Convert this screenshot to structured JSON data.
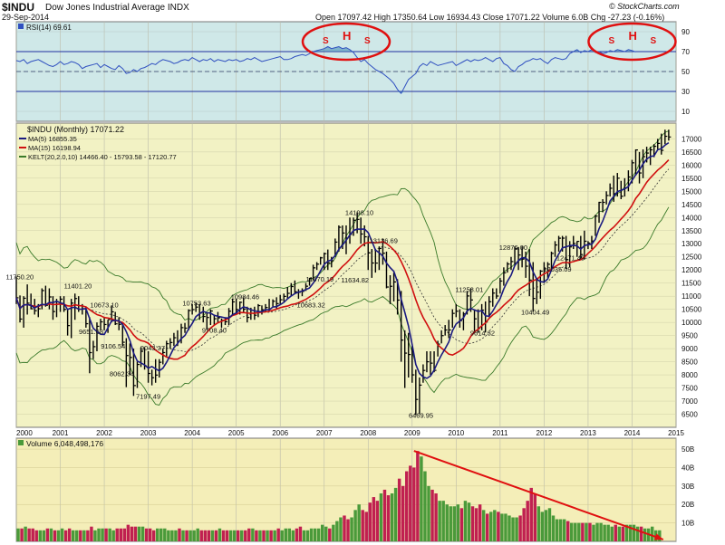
{
  "header": {
    "symbol": "$INDU",
    "name": "Dow Jones Industrial Average INDX",
    "date": "29-Sep-2014",
    "quote": "Open 17097.42  High 17350.64  Low 16934.43  Close 17071.22  Volume 6.0B  Chg -27.23 (-0.16%)",
    "brand": "© StockCharts.com"
  },
  "colors": {
    "rsi_bg": "#cfe8e8",
    "price_bg": "#f2f2c4",
    "volume_bg": "#f4eeb8",
    "rsi_line": "#3050c0",
    "ma5": "#1a1a80",
    "ma15": "#d01010",
    "kelt": "#3a7a2a",
    "up_volume": "#4a9a3a",
    "down_volume": "#c02050",
    "annotation": "#e01010"
  },
  "chart_data": [
    {
      "type": "line",
      "title": "RSI(14) 69.61",
      "ylim": [
        0,
        100
      ],
      "yticks": [
        10,
        30,
        50,
        70,
        90
      ],
      "reference_lines": [
        30,
        50,
        70
      ],
      "x_start": 2000.0,
      "x_step": 0.08333,
      "values": [
        61,
        60,
        62,
        58,
        60,
        61,
        62,
        60,
        58,
        56,
        55,
        57,
        60,
        57,
        58,
        60,
        59,
        57,
        53,
        55,
        56,
        57,
        58,
        54,
        57,
        55,
        53,
        52,
        56,
        53,
        48,
        49,
        52,
        50,
        53,
        54,
        56,
        58,
        57,
        60,
        62,
        61,
        60,
        58,
        59,
        61,
        62,
        61,
        64,
        62,
        60,
        62,
        61,
        63,
        60,
        62,
        61,
        60,
        62,
        61,
        62,
        60,
        61,
        63,
        62,
        64,
        62,
        60,
        61,
        62,
        63,
        64,
        65,
        62,
        62,
        63,
        65,
        66,
        67,
        66,
        68,
        70,
        71,
        72,
        73,
        75,
        73,
        74,
        75,
        73,
        74,
        72,
        69,
        64,
        60,
        62,
        58,
        55,
        52,
        50,
        48,
        45,
        42,
        38,
        32,
        28,
        35,
        42,
        45,
        48,
        55,
        58,
        56,
        60,
        58,
        56,
        57,
        58,
        59,
        60,
        56,
        58,
        60,
        62,
        60,
        62,
        61,
        62,
        64,
        62,
        60,
        63,
        64,
        58,
        56,
        52,
        50,
        55,
        57,
        60,
        61,
        63,
        62,
        63,
        60,
        58,
        62,
        64,
        63,
        62,
        63,
        68,
        70,
        72,
        69,
        71,
        70,
        72,
        69,
        70,
        68,
        69,
        71,
        70,
        72,
        71,
        70,
        72,
        71,
        69.6
      ],
      "annotations": [
        {
          "x": 2007.5,
          "label": "H",
          "shoulders": "S"
        },
        {
          "x": 2014.0,
          "label": "H",
          "shoulders": "S"
        }
      ]
    },
    {
      "type": "line",
      "title": "$INDU (Monthly) 17071.22",
      "legend": [
        {
          "name": "MA(5) 16855.35"
        },
        {
          "name": "MA(15) 16198.94"
        },
        {
          "name": "KELT(20,2.0,10) 14466.40 - 15793.58 - 17120.77"
        }
      ],
      "ylim": [
        6000,
        17600
      ],
      "yticks": [
        6500,
        7000,
        7500,
        8000,
        8500,
        9000,
        9500,
        10000,
        10500,
        11000,
        11500,
        12000,
        12500,
        13000,
        13500,
        14000,
        14500,
        15000,
        15500,
        16000,
        16500,
        17000
      ],
      "xlim": [
        2000.0,
        2015.0
      ],
      "xticks": [
        "2000",
        "2001",
        "2002",
        "2003",
        "2004",
        "2005",
        "2006",
        "2007",
        "2008",
        "2009",
        "2010",
        "2011",
        "2012",
        "2013",
        "2014",
        "2015"
      ],
      "x_start": 2000.0,
      "x_step": 0.08333,
      "close": [
        10940,
        10128,
        10922,
        10734,
        10522,
        10448,
        10522,
        11215,
        10651,
        10971,
        10415,
        10788,
        10887,
        10495,
        9879,
        10735,
        10912,
        10502,
        10523,
        9950,
        8848,
        9075,
        9852,
        10022,
        9920,
        10106,
        10404,
        9946,
        9925,
        9243,
        8737,
        8664,
        7592,
        8397,
        8896,
        8342,
        8054,
        7891,
        7992,
        8480,
        8850,
        9188,
        9233,
        9416,
        9275,
        9801,
        9782,
        10454,
        10488,
        10584,
        10358,
        10226,
        10188,
        10435,
        10140,
        10174,
        10080,
        10027,
        10428,
        10783,
        10490,
        10766,
        10504,
        10192,
        10467,
        10275,
        10641,
        10482,
        10569,
        10440,
        10806,
        10718,
        10864,
        10993,
        11109,
        11367,
        11168,
        11150,
        11186,
        11381,
        11679,
        12081,
        12221,
        12463,
        12622,
        12269,
        12354,
        13063,
        13628,
        13409,
        13212,
        13358,
        13896,
        13930,
        13371,
        13264,
        12650,
        12266,
        12263,
        12820,
        12638,
        11350,
        11378,
        11544,
        10851,
        9325,
        8829,
        8776,
        8000,
        7062,
        7609,
        8168,
        8500,
        8447,
        8171,
        9172,
        9496,
        9712,
        9713,
        10345,
        10428,
        10067,
        10325,
        11009,
        10857,
        10137,
        9774,
        10466,
        10015,
        10788,
        11118,
        11006,
        11578,
        11892,
        12226,
        12320,
        12811,
        12570,
        12414,
        12143,
        11614,
        10914,
        11153,
        11955,
        12046,
        12217,
        12632,
        12952,
        13212,
        13214,
        12393,
        12880,
        13009,
        13091,
        12588,
        13096,
        13025,
        13104,
        14054,
        14578,
        14579,
        14840,
        15116,
        14910,
        15500,
        14810,
        15130,
        15546,
        16086,
        16577,
        15699,
        16322,
        16458,
        16581,
        16717,
        16827,
        16563,
        17098,
        17071
      ],
      "high": [
        11751,
        11029,
        11000,
        11450,
        11100,
        10900,
        10700,
        11300,
        11400,
        11300,
        11000,
        10900,
        11000,
        11000,
        10500,
        10900,
        11100,
        11000,
        10700,
        10600,
        10200,
        9300,
        10000,
        10140,
        10200,
        10100,
        10650,
        10400,
        10200,
        10000,
        9400,
        9200,
        9000,
        8500,
        9050,
        9050,
        8900,
        8200,
        8600,
        8600,
        9000,
        9300,
        9400,
        9600,
        9700,
        9950,
        9980,
        10500,
        10700,
        10760,
        10700,
        10600,
        10350,
        10500,
        10300,
        10400,
        10150,
        10200,
        10550,
        10900,
        10900,
        10800,
        10950,
        10600,
        10560,
        10600,
        10700,
        10650,
        10700,
        10900,
        10880,
        10960,
        11050,
        11100,
        11350,
        11500,
        11600,
        11270,
        11300,
        11500,
        11700,
        12200,
        12300,
        12500,
        12660,
        12780,
        12500,
        13200,
        13700,
        13700,
        13700,
        14000,
        14000,
        14198,
        14000,
        13700,
        13300,
        12800,
        12800,
        12900,
        13200,
        12700,
        11800,
        11900,
        11650,
        11200,
        9700,
        9600,
        9100,
        8200,
        7900,
        8400,
        8900,
        8900,
        8900,
        9300,
        9700,
        9900,
        10100,
        10500,
        10700,
        10500,
        10400,
        11200,
        11300,
        10500,
        10500,
        10700,
        10800,
        11000,
        11300,
        11300,
        11700,
        12100,
        12300,
        12500,
        12900,
        12876,
        12900,
        12700,
        12800,
        12300,
        11700,
        12000,
        12300,
        12300,
        12700,
        13100,
        13300,
        13300,
        13300,
        13100,
        13300,
        13100,
        13300,
        13500,
        13100,
        13300,
        14100,
        14600,
        14700,
        15000,
        15300,
        15600,
        15700,
        15400,
        15500,
        15800,
        16200,
        16600,
        16500,
        16600,
        16700,
        16700,
        16800,
        17000,
        17200,
        17350,
        17350
      ],
      "low": [
        10700,
        10000,
        9800,
        10300,
        10500,
        10300,
        10200,
        10500,
        10600,
        10500,
        10100,
        10200,
        10400,
        10400,
        9500,
        9400,
        10100,
        10400,
        10300,
        9800,
        8062,
        8600,
        8900,
        9700,
        9700,
        9600,
        10000,
        9900,
        9700,
        9100,
        7532,
        8000,
        7197,
        7500,
        8300,
        8200,
        7700,
        7600,
        7700,
        7900,
        8400,
        8700,
        9000,
        9100,
        9100,
        9200,
        9600,
        9700,
        10300,
        10400,
        10100,
        10000,
        9708,
        9900,
        9900,
        10000,
        9800,
        9900,
        9900,
        10300,
        10300,
        10300,
        10400,
        10000,
        10100,
        10100,
        10200,
        10300,
        10400,
        10400,
        10600,
        10500,
        10683,
        10800,
        10900,
        11000,
        11100,
        10900,
        11000,
        11200,
        11400,
        11600,
        12000,
        12200,
        12000,
        12000,
        12100,
        12500,
        12700,
        12800,
        12600,
        13000,
        13300,
        13400,
        13000,
        12900,
        12000,
        11700,
        11900,
        12000,
        12200,
        11300,
        10700,
        10800,
        10300,
        8500,
        7500,
        7900,
        7700,
        6470,
        6500,
        7700,
        8100,
        8000,
        8100,
        8700,
        9200,
        9500,
        9400,
        9800,
        10200,
        9800,
        9700,
        10300,
        10400,
        9600,
        9600,
        9700,
        9614,
        10200,
        10600,
        10900,
        11100,
        11400,
        11900,
        12000,
        12200,
        12000,
        12100,
        11700,
        11000,
        10404,
        10700,
        10900,
        11500,
        11700,
        12000,
        12500,
        12700,
        12700,
        12035,
        12100,
        12800,
        12500,
        12400,
        12400,
        12800,
        12800,
        13300,
        13800,
        14200,
        14500,
        14800,
        14600,
        14800,
        14700,
        14800,
        15000,
        15300,
        15600,
        15300,
        15500,
        16100,
        16000,
        16300,
        16600,
        16400,
        16800,
        16934
      ],
      "labels": [
        {
          "x": 2000.08,
          "value": 11750.2
        },
        {
          "x": 2001.4,
          "value": 11401.2
        },
        {
          "x": 2001.7,
          "value": 9651.68
        },
        {
          "x": 2002.0,
          "value": 10673.1
        },
        {
          "x": 2002.2,
          "value": 9106.54
        },
        {
          "x": 2002.4,
          "value": 8062.34
        },
        {
          "x": 2003.0,
          "value": 7197.49
        },
        {
          "x": 2003.1,
          "value": 9043.37
        },
        {
          "x": 2004.1,
          "value": 10753.63
        },
        {
          "x": 2004.5,
          "value": 9708.4
        },
        {
          "x": 2005.2,
          "value": 10984.46
        },
        {
          "x": 2006.7,
          "value": 10683.32
        },
        {
          "x": 2006.9,
          "value": 11670.19
        },
        {
          "x": 2007.8,
          "value": 14198.1
        },
        {
          "x": 2007.7,
          "value": 11634.82
        },
        {
          "x": 2008.35,
          "value": 13136.69
        },
        {
          "x": 2009.2,
          "value": 6469.95
        },
        {
          "x": 2010.3,
          "value": 11258.01
        },
        {
          "x": 2010.6,
          "value": 9614.32
        },
        {
          "x": 2011.3,
          "value": 12876.0
        },
        {
          "x": 2011.8,
          "value": 10404.49
        },
        {
          "x": 2012.3,
          "value": 12035.09
        },
        {
          "x": 2012.6,
          "value": 12471.49
        }
      ]
    },
    {
      "type": "bar",
      "title": "Volume 6,048,498,176",
      "ylim": [
        0,
        52
      ],
      "yticks": [
        10,
        20,
        30,
        40,
        50
      ],
      "ytick_labels": [
        "10B",
        "20B",
        "30B",
        "40B",
        "50B"
      ],
      "unit": "B",
      "values": [
        7,
        7,
        8,
        7,
        7,
        6,
        6,
        6,
        7,
        7,
        6,
        6,
        7,
        6,
        7,
        6,
        6,
        6,
        6,
        6,
        8,
        6,
        7,
        7,
        7,
        7,
        6,
        7,
        7,
        7,
        9,
        8,
        8,
        8,
        8,
        7,
        7,
        6,
        7,
        7,
        7,
        6,
        6,
        6,
        7,
        6,
        6,
        6,
        6,
        7,
        6,
        6,
        6,
        6,
        6,
        7,
        6,
        6,
        6,
        6,
        6,
        6,
        6,
        7,
        7,
        6,
        6,
        6,
        6,
        6,
        6,
        7,
        6,
        7,
        7,
        6,
        7,
        8,
        6,
        6,
        7,
        7,
        7,
        9,
        8,
        7,
        9,
        11,
        13,
        14,
        12,
        13,
        17,
        20,
        17,
        16,
        21,
        24,
        22,
        26,
        28,
        25,
        26,
        29,
        34,
        30,
        38,
        41,
        40,
        49,
        46,
        38,
        30,
        28,
        26,
        22,
        22,
        20,
        19,
        19,
        20,
        18,
        22,
        21,
        19,
        18,
        20,
        17,
        15,
        16,
        17,
        16,
        15,
        15,
        14,
        13,
        13,
        14,
        18,
        22,
        29,
        26,
        19,
        16,
        17,
        18,
        14,
        12,
        12,
        12,
        11,
        10,
        10,
        10,
        10,
        10,
        10,
        9,
        10,
        10,
        9,
        9,
        8,
        9,
        8,
        8,
        9,
        9,
        9,
        8,
        8,
        7,
        7,
        8,
        6,
        6
      ],
      "trend_line": {
        "from_bar": 108,
        "from_value": 49,
        "to_bar": 176,
        "to_value": 1
      }
    }
  ]
}
